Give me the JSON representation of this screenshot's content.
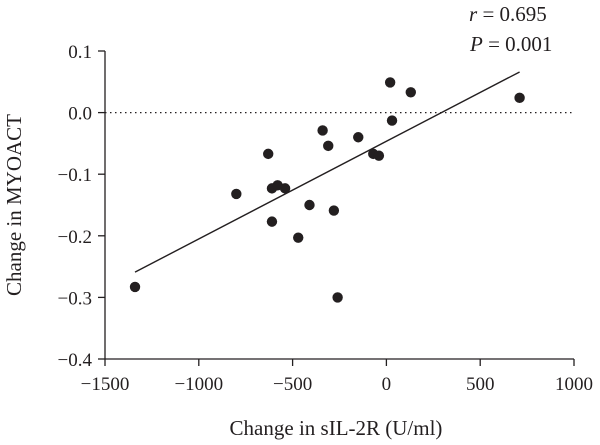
{
  "chart_data": {
    "type": "scatter",
    "xlabel": "Change in sIL-2R (U/ml)",
    "ylabel": "Change in MYOACT",
    "xlim": [
      -1500,
      1000
    ],
    "ylim": [
      -0.4,
      0.1
    ],
    "xticks": [
      -1500,
      -1000,
      -500,
      0,
      500,
      1000
    ],
    "xtick_labels": [
      "−1500",
      "−1000",
      "−500",
      "0",
      "500",
      "1000"
    ],
    "yticks": [
      -0.4,
      -0.3,
      -0.2,
      -0.1,
      0.0,
      0.1
    ],
    "ytick_labels": [
      "−0.4",
      "−0.3",
      "−0.2",
      "−0.1",
      "0.0",
      "0.1"
    ],
    "reference_line_y": 0.0,
    "points": [
      {
        "x": -1340,
        "y": -0.283
      },
      {
        "x": -800,
        "y": -0.132
      },
      {
        "x": -630,
        "y": -0.067
      },
      {
        "x": -610,
        "y": -0.123
      },
      {
        "x": -610,
        "y": -0.177
      },
      {
        "x": -580,
        "y": -0.118
      },
      {
        "x": -540,
        "y": -0.123
      },
      {
        "x": -470,
        "y": -0.203
      },
      {
        "x": -410,
        "y": -0.15
      },
      {
        "x": -340,
        "y": -0.029
      },
      {
        "x": -310,
        "y": -0.054
      },
      {
        "x": -280,
        "y": -0.159
      },
      {
        "x": -260,
        "y": -0.3
      },
      {
        "x": -150,
        "y": -0.04
      },
      {
        "x": -70,
        "y": -0.067
      },
      {
        "x": -40,
        "y": -0.07
      },
      {
        "x": 20,
        "y": 0.049
      },
      {
        "x": 30,
        "y": -0.013
      },
      {
        "x": 130,
        "y": 0.033
      },
      {
        "x": 710,
        "y": 0.024
      }
    ],
    "regression": {
      "x": [
        -1340,
        710
      ],
      "y": [
        -0.259,
        0.066
      ]
    },
    "annotations": {
      "r_symbol": "r",
      "r_value": " = 0.695",
      "p_symbol": "P",
      "p_value": " = 0.001"
    },
    "grid": false
  }
}
